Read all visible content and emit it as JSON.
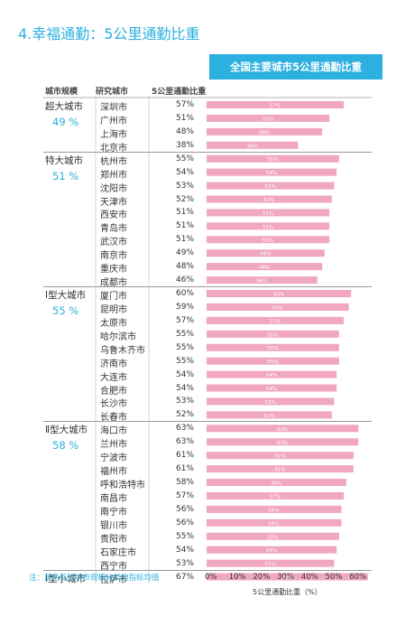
{
  "page": {
    "title": "4.幸福通勤：5公里通勤比重",
    "banner": "全国主要城市5公里通勤比重",
    "note": "注：蓝色标注城市规模分类的指标均值"
  },
  "columns": {
    "tier": "城市规模",
    "city": "研究城市",
    "value": "5公里通勤比重"
  },
  "chart_data": {
    "type": "bar",
    "orientation": "horizontal",
    "title": "全国主要城市5公里通勤比重",
    "xlabel": "5公里通勤比重（%）",
    "xlim": [
      0,
      70
    ],
    "xticks": [
      "0%",
      "10%",
      "20%",
      "30%",
      "40%",
      "50%",
      "60%"
    ],
    "groups": [
      {
        "name": "超大城市",
        "avg": "49 %",
        "cities": [
          {
            "city": "深圳市",
            "value": 57,
            "label": "57%"
          },
          {
            "city": "广州市",
            "value": 51,
            "label": "51%"
          },
          {
            "city": "上海市",
            "value": 48,
            "label": "48%"
          },
          {
            "city": "北京市",
            "value": 38,
            "label": "38%"
          }
        ]
      },
      {
        "name": "特大城市",
        "avg": "51 %",
        "cities": [
          {
            "city": "杭州市",
            "value": 55,
            "label": "55%"
          },
          {
            "city": "郑州市",
            "value": 54,
            "label": "54%"
          },
          {
            "city": "沈阳市",
            "value": 53,
            "label": "53%"
          },
          {
            "city": "天津市",
            "value": 52,
            "label": "52%"
          },
          {
            "city": "西安市",
            "value": 51,
            "label": "51%"
          },
          {
            "city": "青岛市",
            "value": 51,
            "label": "51%"
          },
          {
            "city": "武汉市",
            "value": 51,
            "label": "51%"
          },
          {
            "city": "南京市",
            "value": 49,
            "label": "49%"
          },
          {
            "city": "重庆市",
            "value": 48,
            "label": "48%"
          },
          {
            "city": "成都市",
            "value": 46,
            "label": "46%"
          }
        ]
      },
      {
        "name": "Ⅰ型大城市",
        "avg": "55 %",
        "cities": [
          {
            "city": "厦门市",
            "value": 60,
            "label": "60%"
          },
          {
            "city": "昆明市",
            "value": 59,
            "label": "59%"
          },
          {
            "city": "太原市",
            "value": 57,
            "label": "57%"
          },
          {
            "city": "哈尔滨市",
            "value": 55,
            "label": "55%"
          },
          {
            "city": "乌鲁木齐市",
            "value": 55,
            "label": "55%"
          },
          {
            "city": "济南市",
            "value": 55,
            "label": "55%"
          },
          {
            "city": "大连市",
            "value": 54,
            "label": "54%"
          },
          {
            "city": "合肥市",
            "value": 54,
            "label": "54%"
          },
          {
            "city": "长沙市",
            "value": 53,
            "label": "53%"
          },
          {
            "city": "长春市",
            "value": 52,
            "label": "52%"
          }
        ]
      },
      {
        "name": "Ⅱ型大城市",
        "avg": "58 %",
        "cities": [
          {
            "city": "海口市",
            "value": 63,
            "label": "63%"
          },
          {
            "city": "兰州市",
            "value": 63,
            "label": "63%"
          },
          {
            "city": "宁波市",
            "value": 61,
            "label": "61%"
          },
          {
            "city": "福州市",
            "value": 61,
            "label": "61%"
          },
          {
            "city": "呼和浩特市",
            "value": 58,
            "label": "58%"
          },
          {
            "city": "南昌市",
            "value": 57,
            "label": "57%"
          },
          {
            "city": "南宁市",
            "value": 56,
            "label": "56%"
          },
          {
            "city": "银川市",
            "value": 56,
            "label": "56%"
          },
          {
            "city": "贵阳市",
            "value": 55,
            "label": "55%"
          },
          {
            "city": "石家庄市",
            "value": 54,
            "label": "54%"
          },
          {
            "city": "西宁市",
            "value": 53,
            "label": "53%"
          }
        ]
      },
      {
        "name": "Ⅰ型小城市",
        "avg": "",
        "cities": [
          {
            "city": "拉萨市",
            "value": 67,
            "label": "67%"
          }
        ]
      }
    ],
    "colors": {
      "bar": "#f1a6c2",
      "accent": "#2bb0e0"
    }
  }
}
